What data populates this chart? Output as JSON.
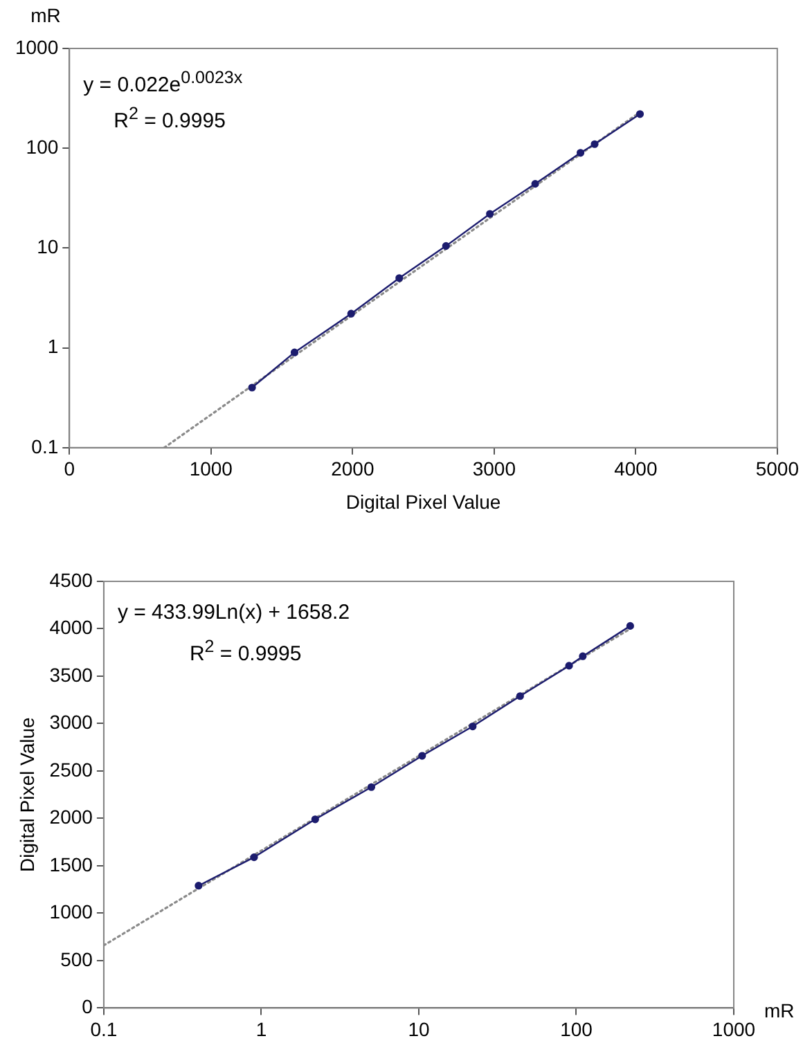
{
  "chart_data": [
    {
      "type": "scatter",
      "xlabel": "Digital Pixel Value",
      "ylabel": "mR",
      "log": "y",
      "grid": false,
      "legend": false,
      "xlim": [
        0,
        5000
      ],
      "xticks": [
        0,
        1000,
        2000,
        3000,
        4000,
        5000
      ],
      "ylim": [
        0.1,
        1000
      ],
      "yticks": [
        0.1,
        1,
        10,
        100,
        1000
      ],
      "annotations": [
        "y = 0.022e$^{0.0023x}$",
        "R$^{2}$ = 0.9995"
      ],
      "series": [
        {
          "type": "line",
          "marker": "circle",
          "line_style": "solid",
          "color": "#1c1c6e",
          "x": [
            1290,
            1590,
            1990,
            2330,
            2660,
            2970,
            3290,
            3610,
            3710,
            4030
          ],
          "values": [
            0.4,
            0.9,
            2.2,
            5,
            10.5,
            22,
            44,
            90,
            110,
            220
          ]
        },
        {
          "type": "line",
          "marker": "none",
          "line_style": "dotted",
          "color": "#8a8a8a",
          "x": [
            670,
            4030
          ],
          "values": [
            0.1,
            230
          ]
        }
      ]
    },
    {
      "type": "scatter",
      "xlabel": "mR",
      "ylabel": "Digital Pixel Value",
      "log": "x",
      "grid": false,
      "legend": false,
      "xlim": [
        0.1,
        1000
      ],
      "xticks": [
        0.1,
        1,
        10,
        100,
        1000
      ],
      "ylim": [
        0,
        4500
      ],
      "yticks": [
        0,
        500,
        1000,
        1500,
        2000,
        2500,
        3000,
        3500,
        4000,
        4500
      ],
      "annotations": [
        "y = 433.99Ln(x) + 1658.2",
        "R$^{2}$ = 0.9995"
      ],
      "series": [
        {
          "type": "line",
          "marker": "circle",
          "line_style": "solid",
          "color": "#1c1c6e",
          "x": [
            0.4,
            0.9,
            2.2,
            5,
            10.5,
            22,
            44,
            90,
            110,
            220
          ],
          "values": [
            1290,
            1590,
            1990,
            2330,
            2660,
            2970,
            3290,
            3610,
            3710,
            4030
          ]
        },
        {
          "type": "line",
          "marker": "none",
          "line_style": "dotted",
          "color": "#8a8a8a",
          "x": [
            0.1,
            220
          ],
          "values": [
            660,
            4000
          ]
        }
      ]
    }
  ]
}
